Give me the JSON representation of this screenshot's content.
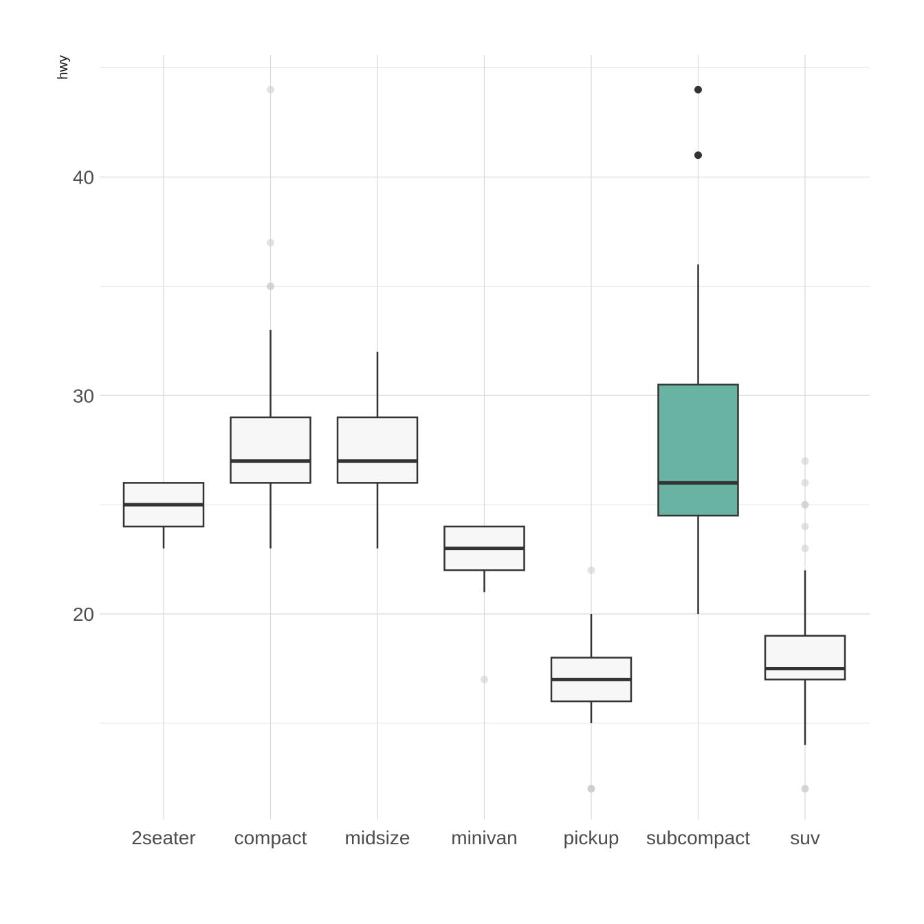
{
  "chart_data": {
    "type": "boxplot",
    "title": "",
    "xlabel": "",
    "ylabel": "hwy",
    "ylim": [
      11,
      46
    ],
    "y_ticks": [
      20,
      30,
      40
    ],
    "y_tick_labels": [
      "20",
      "30",
      "40"
    ],
    "y_minor_gridlines": [
      15,
      25,
      35,
      45
    ],
    "grid": true,
    "legend": "none",
    "categories": [
      "2seater",
      "compact",
      "midsize",
      "minivan",
      "pickup",
      "subcompact",
      "suv"
    ],
    "highlighted_category": "subcompact",
    "colors": {
      "default_fill": "#f7f7f7",
      "highlight_fill": "#69b3a2",
      "outline": "#333333",
      "muted_outlier": "#cccccc",
      "highlight_outlier": "#333333"
    },
    "boxes": [
      {
        "category": "2seater",
        "lower_whisker": 23,
        "q1": 24,
        "median": 25,
        "q3": 26,
        "upper_whisker": 26,
        "outliers": []
      },
      {
        "category": "compact",
        "lower_whisker": 23,
        "q1": 26,
        "median": 27,
        "q3": 29,
        "upper_whisker": 33,
        "outliers": [
          35,
          37,
          35,
          44
        ]
      },
      {
        "category": "midsize",
        "lower_whisker": 23,
        "q1": 26,
        "median": 27,
        "q3": 29,
        "upper_whisker": 32,
        "outliers": []
      },
      {
        "category": "minivan",
        "lower_whisker": 21,
        "q1": 22,
        "median": 23,
        "q3": 24,
        "upper_whisker": 24,
        "outliers": [
          17
        ]
      },
      {
        "category": "pickup",
        "lower_whisker": 15,
        "q1": 16,
        "median": 17,
        "q3": 18,
        "upper_whisker": 20,
        "outliers": [
          12,
          12,
          12,
          22
        ]
      },
      {
        "category": "subcompact",
        "lower_whisker": 20,
        "q1": 24.5,
        "median": 26,
        "q3": 30.5,
        "upper_whisker": 36,
        "outliers": [
          44,
          41
        ]
      },
      {
        "category": "suv",
        "lower_whisker": 14,
        "q1": 17,
        "median": 17.5,
        "q3": 19,
        "upper_whisker": 22,
        "outliers": [
          12,
          12,
          25,
          24,
          27,
          25,
          26,
          23
        ]
      }
    ]
  }
}
